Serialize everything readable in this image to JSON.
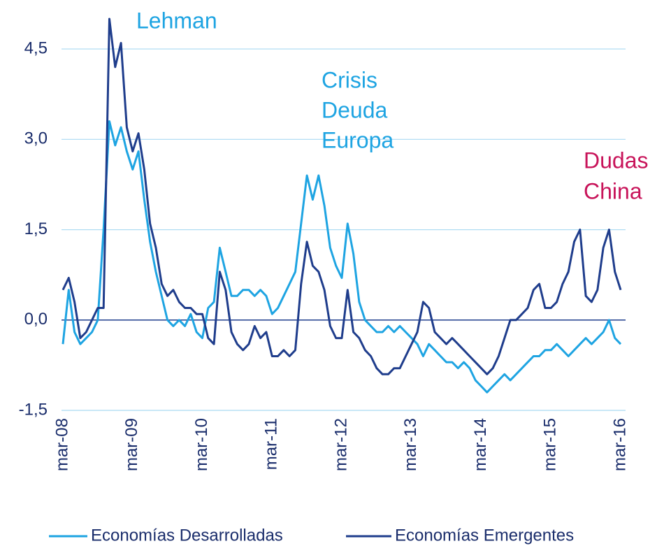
{
  "chart_data": {
    "type": "line",
    "categories": [
      "mar-08",
      null,
      null,
      null,
      null,
      null,
      null,
      null,
      null,
      null,
      null,
      null,
      "mar-09",
      null,
      null,
      null,
      null,
      null,
      null,
      null,
      null,
      null,
      null,
      null,
      "mar-10",
      null,
      null,
      null,
      null,
      null,
      null,
      null,
      null,
      null,
      null,
      null,
      "mar-11",
      null,
      null,
      null,
      null,
      null,
      null,
      null,
      null,
      null,
      null,
      null,
      "mar-12",
      null,
      null,
      null,
      null,
      null,
      null,
      null,
      null,
      null,
      null,
      null,
      "mar-13",
      null,
      null,
      null,
      null,
      null,
      null,
      null,
      null,
      null,
      null,
      null,
      "mar-14",
      null,
      null,
      null,
      null,
      null,
      null,
      null,
      null,
      null,
      null,
      null,
      "mar-15",
      null,
      null,
      null,
      null,
      null,
      null,
      null,
      null,
      null,
      null,
      null,
      "mar-16"
    ],
    "series": [
      {
        "name": "Economías Desarrolladas",
        "color": "#1ea4e2",
        "values": [
          -0.4,
          0.5,
          -0.2,
          -0.4,
          -0.3,
          -0.2,
          0.0,
          1.5,
          3.3,
          2.9,
          3.2,
          2.8,
          2.5,
          2.8,
          2.0,
          1.3,
          0.8,
          0.4,
          0.0,
          -0.1,
          0.0,
          -0.1,
          0.1,
          -0.2,
          -0.3,
          0.2,
          0.3,
          1.2,
          0.8,
          0.4,
          0.4,
          0.5,
          0.5,
          0.4,
          0.5,
          0.4,
          0.1,
          0.2,
          0.4,
          0.6,
          0.8,
          1.6,
          2.4,
          2.0,
          2.4,
          1.9,
          1.2,
          0.9,
          0.7,
          1.6,
          1.1,
          0.3,
          0.0,
          -0.1,
          -0.2,
          -0.2,
          -0.1,
          -0.2,
          -0.1,
          -0.2,
          -0.3,
          -0.4,
          -0.6,
          -0.4,
          -0.5,
          -0.6,
          -0.7,
          -0.7,
          -0.8,
          -0.7,
          -0.8,
          -1.0,
          -1.1,
          -1.2,
          -1.1,
          -1.0,
          -0.9,
          -1.0,
          -0.9,
          -0.8,
          -0.7,
          -0.6,
          -0.6,
          -0.5,
          -0.5,
          -0.4,
          -0.5,
          -0.6,
          -0.5,
          -0.4,
          -0.3,
          -0.4,
          -0.3,
          -0.2,
          0.0,
          -0.3,
          -0.4
        ]
      },
      {
        "name": "Economías Emergentes",
        "color": "#1f3d8c",
        "values": [
          0.5,
          0.7,
          0.3,
          -0.3,
          -0.2,
          0.0,
          0.2,
          0.2,
          5.0,
          4.2,
          4.6,
          3.2,
          2.8,
          3.1,
          2.5,
          1.6,
          1.2,
          0.6,
          0.4,
          0.5,
          0.3,
          0.2,
          0.2,
          0.1,
          0.1,
          -0.3,
          -0.4,
          0.8,
          0.5,
          -0.2,
          -0.4,
          -0.5,
          -0.4,
          -0.1,
          -0.3,
          -0.2,
          -0.6,
          -0.6,
          -0.5,
          -0.6,
          -0.5,
          0.6,
          1.3,
          0.9,
          0.8,
          0.5,
          -0.1,
          -0.3,
          -0.3,
          0.5,
          -0.2,
          -0.3,
          -0.5,
          -0.6,
          -0.8,
          -0.9,
          -0.9,
          -0.8,
          -0.8,
          -0.6,
          -0.4,
          -0.2,
          0.3,
          0.2,
          -0.2,
          -0.3,
          -0.4,
          -0.3,
          -0.4,
          -0.5,
          -0.6,
          -0.7,
          -0.8,
          -0.9,
          -0.8,
          -0.6,
          -0.3,
          0.0,
          0.0,
          0.1,
          0.2,
          0.5,
          0.6,
          0.2,
          0.2,
          0.3,
          0.6,
          0.8,
          1.3,
          1.5,
          0.4,
          0.3,
          0.5,
          1.2,
          1.5,
          0.8,
          0.5
        ]
      }
    ],
    "ylim": [
      -1.5,
      5.0
    ],
    "yticks": [
      {
        "value": -1.5,
        "label": "-1,5"
      },
      {
        "value": 0.0,
        "label": "0,0"
      },
      {
        "value": 1.5,
        "label": "1,5"
      },
      {
        "value": 3.0,
        "label": "3,0"
      },
      {
        "value": 4.5,
        "label": "4,5"
      }
    ],
    "grid": true,
    "legend": "bottom",
    "annotations": [
      {
        "text": [
          "Lehman"
        ],
        "color": "#1ea4e2"
      },
      {
        "text": [
          "Crisis",
          "Deuda",
          "Europa"
        ],
        "color": "#1ea4e2"
      },
      {
        "text": [
          "Dudas",
          "China"
        ],
        "color": "#c8145a"
      }
    ]
  }
}
